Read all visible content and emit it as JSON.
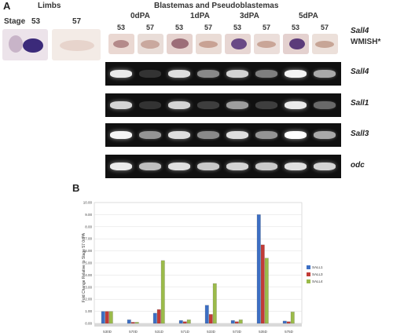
{
  "panel_a": {
    "letter": "A",
    "limbs_title": "Limbs",
    "stage_label": "Stage",
    "limb_stages": [
      "53",
      "57"
    ],
    "blastema_title": "Blastemas and Pseudoblastemas",
    "timepoints": [
      "0dPA",
      "1dPA",
      "3dPA",
      "5dPA"
    ],
    "lanes": [
      "53",
      "57",
      "53",
      "57",
      "53",
      "57",
      "53",
      "57"
    ],
    "wmish_label": [
      "Sall4",
      "WMISH*"
    ],
    "gels": [
      {
        "gene": "Sall4",
        "intensity": [
          0.9,
          0.05,
          0.85,
          0.45,
          0.8,
          0.4,
          0.95,
          0.6
        ]
      },
      {
        "gene": "Sall1",
        "intensity": [
          0.8,
          0.05,
          0.8,
          0.1,
          0.55,
          0.1,
          0.9,
          0.3
        ]
      },
      {
        "gene": "Sall3",
        "intensity": [
          0.95,
          0.5,
          0.85,
          0.45,
          0.85,
          0.5,
          1.0,
          0.6
        ]
      },
      {
        "gene": "odc",
        "intensity": [
          0.9,
          0.7,
          0.85,
          0.75,
          0.8,
          0.75,
          0.85,
          0.8
        ]
      }
    ]
  },
  "panel_b": {
    "letter": "B",
    "chart_data": {
      "type": "bar",
      "categories": [
        "530D",
        "570D",
        "531D",
        "571D",
        "533D",
        "573D",
        "535D",
        "575D"
      ],
      "ylabel": "Fold Change Relative to Stage 57 0dPA",
      "ylim": [
        0,
        10
      ],
      "yticks": [
        "0.00",
        "1.00",
        "2.00",
        "3.00",
        "4.00",
        "5.00",
        "6.00",
        "7.00",
        "8.00",
        "9.00",
        "10.00"
      ],
      "legend_position": "right",
      "series": [
        {
          "name": "SALL1",
          "color": "#3d6fc4",
          "values": [
            1.0,
            0.3,
            0.85,
            0.25,
            1.5,
            0.25,
            9.0,
            0.2
          ]
        },
        {
          "name": "SALL3",
          "color": "#c23b36",
          "values": [
            1.0,
            0.1,
            1.15,
            0.15,
            0.75,
            0.15,
            6.5,
            0.15
          ]
        },
        {
          "name": "SALL4",
          "color": "#9bbb4a",
          "values": [
            1.0,
            0.1,
            5.2,
            0.3,
            3.3,
            0.3,
            5.4,
            0.95
          ]
        }
      ]
    }
  }
}
